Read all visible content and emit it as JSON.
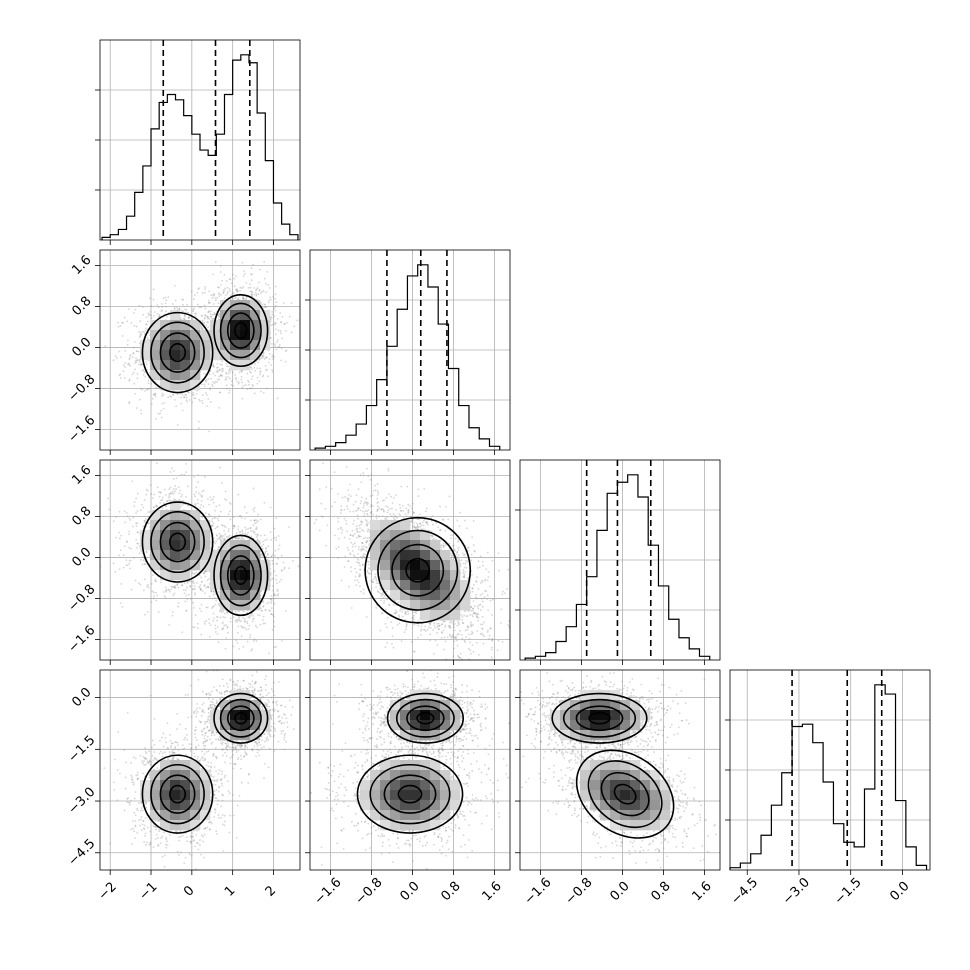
{
  "chart_data": {
    "type": "corner",
    "grid": true,
    "variables": [
      {
        "ticks": [
          "−2",
          "−1",
          "0",
          "1",
          "2"
        ],
        "tick_values": [
          -2,
          -1,
          0,
          1,
          2
        ],
        "range": [
          -2.25,
          2.65
        ],
        "quantiles": [
          -0.7,
          0.58,
          1.42
        ],
        "histogram": {
          "bin_edges": [
            -2.2,
            -2.0,
            -1.8,
            -1.6,
            -1.4,
            -1.2,
            -1.0,
            -0.8,
            -0.6,
            -0.4,
            -0.2,
            0.0,
            0.2,
            0.4,
            0.6,
            0.8,
            1.0,
            1.2,
            1.4,
            1.6,
            1.8,
            2.0,
            2.2,
            2.4,
            2.6
          ],
          "counts": [
            1,
            2,
            4,
            9,
            18,
            28,
            42,
            52,
            55,
            53,
            47,
            40,
            34,
            32,
            40,
            55,
            68,
            70,
            67,
            48,
            30,
            14,
            6,
            2
          ]
        },
        "modes": [
          {
            "center": [
              -0.35,
              -0.1
            ],
            "spread": [
              0.42,
              0.38
            ],
            "weight": 0.45
          },
          {
            "center": [
              1.2,
              0.33
            ],
            "spread": [
              0.32,
              0.34
            ],
            "weight": 0.55
          }
        ]
      },
      {
        "ticks": [
          "−1.6",
          "−0.8",
          "0.0",
          "0.8",
          "1.6"
        ],
        "tick_values": [
          -1.6,
          -0.8,
          0.0,
          0.8,
          1.6
        ],
        "range": [
          -2.0,
          1.9
        ],
        "quantiles": [
          -0.5,
          0.16,
          0.67
        ],
        "histogram": {
          "bin_edges": [
            -1.9,
            -1.7,
            -1.5,
            -1.3,
            -1.1,
            -0.9,
            -0.7,
            -0.5,
            -0.3,
            -0.1,
            0.1,
            0.3,
            0.5,
            0.7,
            0.9,
            1.1,
            1.3,
            1.5,
            1.7
          ],
          "counts": [
            1,
            2,
            4,
            8,
            14,
            24,
            38,
            56,
            76,
            94,
            100,
            88,
            68,
            44,
            24,
            12,
            6,
            2
          ]
        }
      },
      {
        "ticks": [
          "−1.6",
          "−0.8",
          "0.0",
          "0.8",
          "1.6"
        ],
        "tick_values": [
          -1.6,
          -0.8,
          0.0,
          0.8,
          1.6
        ],
        "range": [
          -2.0,
          1.9
        ],
        "quantiles": [
          -0.7,
          -0.1,
          0.55
        ],
        "histogram": {
          "bin_edges": [
            -1.9,
            -1.7,
            -1.5,
            -1.3,
            -1.1,
            -0.9,
            -0.7,
            -0.5,
            -0.3,
            -0.1,
            0.1,
            0.3,
            0.5,
            0.7,
            0.9,
            1.1,
            1.3,
            1.5,
            1.7
          ],
          "counts": [
            1,
            2,
            4,
            10,
            18,
            30,
            45,
            70,
            90,
            96,
            100,
            88,
            62,
            40,
            22,
            12,
            6,
            2
          ]
        }
      },
      {
        "ticks": [
          "−4.5",
          "−3.0",
          "−1.5",
          "0.0"
        ],
        "tick_values": [
          -4.5,
          -3.0,
          -1.5,
          0.0
        ],
        "range": [
          -5.0,
          0.8
        ],
        "quantiles": [
          -3.2,
          -1.6,
          -0.6
        ],
        "histogram": {
          "bin_edges": [
            -5.0,
            -4.7,
            -4.4,
            -4.1,
            -3.8,
            -3.5,
            -3.2,
            -2.9,
            -2.6,
            -2.3,
            -2.0,
            -1.7,
            -1.4,
            -1.1,
            -0.8,
            -0.5,
            -0.2,
            0.1,
            0.4,
            0.7
          ],
          "counts": [
            1,
            3,
            7,
            15,
            28,
            42,
            62,
            63,
            55,
            38,
            20,
            12,
            10,
            35,
            80,
            76,
            30,
            10,
            2
          ]
        }
      }
    ],
    "pairs": [
      {
        "row": 1,
        "col": 0,
        "modes": [
          {
            "center": [
              -0.35,
              -0.1
            ],
            "spread": [
              0.42,
              0.38
            ],
            "weight": 0.45
          },
          {
            "center": [
              1.2,
              0.33
            ],
            "spread": [
              0.32,
              0.34
            ],
            "weight": 0.55
          }
        ]
      },
      {
        "row": 2,
        "col": 0,
        "modes": [
          {
            "center": [
              -0.35,
              0.3
            ],
            "spread": [
              0.42,
              0.38
            ],
            "weight": 0.45
          },
          {
            "center": [
              1.2,
              -0.35
            ],
            "spread": [
              0.32,
              0.38
            ],
            "weight": 0.55
          }
        ]
      },
      {
        "row": 2,
        "col": 1,
        "modes": [
          {
            "center": [
              0.1,
              -0.25
            ],
            "spread": [
              0.5,
              0.5
            ],
            "weight": 1.0,
            "tilt": -0.55
          }
        ]
      },
      {
        "row": 3,
        "col": 0,
        "modes": [
          {
            "center": [
              -0.35,
              -2.8
            ],
            "spread": [
              0.42,
              0.55
            ],
            "weight": 0.45
          },
          {
            "center": [
              1.2,
              -0.6
            ],
            "spread": [
              0.32,
              0.35
            ],
            "weight": 0.55
          }
        ]
      },
      {
        "row": 3,
        "col": 1,
        "modes": [
          {
            "center": [
              -0.05,
              -2.8
            ],
            "spread": [
              0.5,
              0.55
            ],
            "weight": 0.45
          },
          {
            "center": [
              0.25,
              -0.6
            ],
            "spread": [
              0.36,
              0.35
            ],
            "weight": 0.55
          }
        ]
      },
      {
        "row": 3,
        "col": 2,
        "modes": [
          {
            "center": [
              0.05,
              -2.8
            ],
            "spread": [
              0.5,
              0.55
            ],
            "weight": 0.45,
            "tilt": -0.35
          },
          {
            "center": [
              -0.45,
              -0.6
            ],
            "spread": [
              0.45,
              0.35
            ],
            "weight": 0.55
          }
        ]
      }
    ]
  }
}
